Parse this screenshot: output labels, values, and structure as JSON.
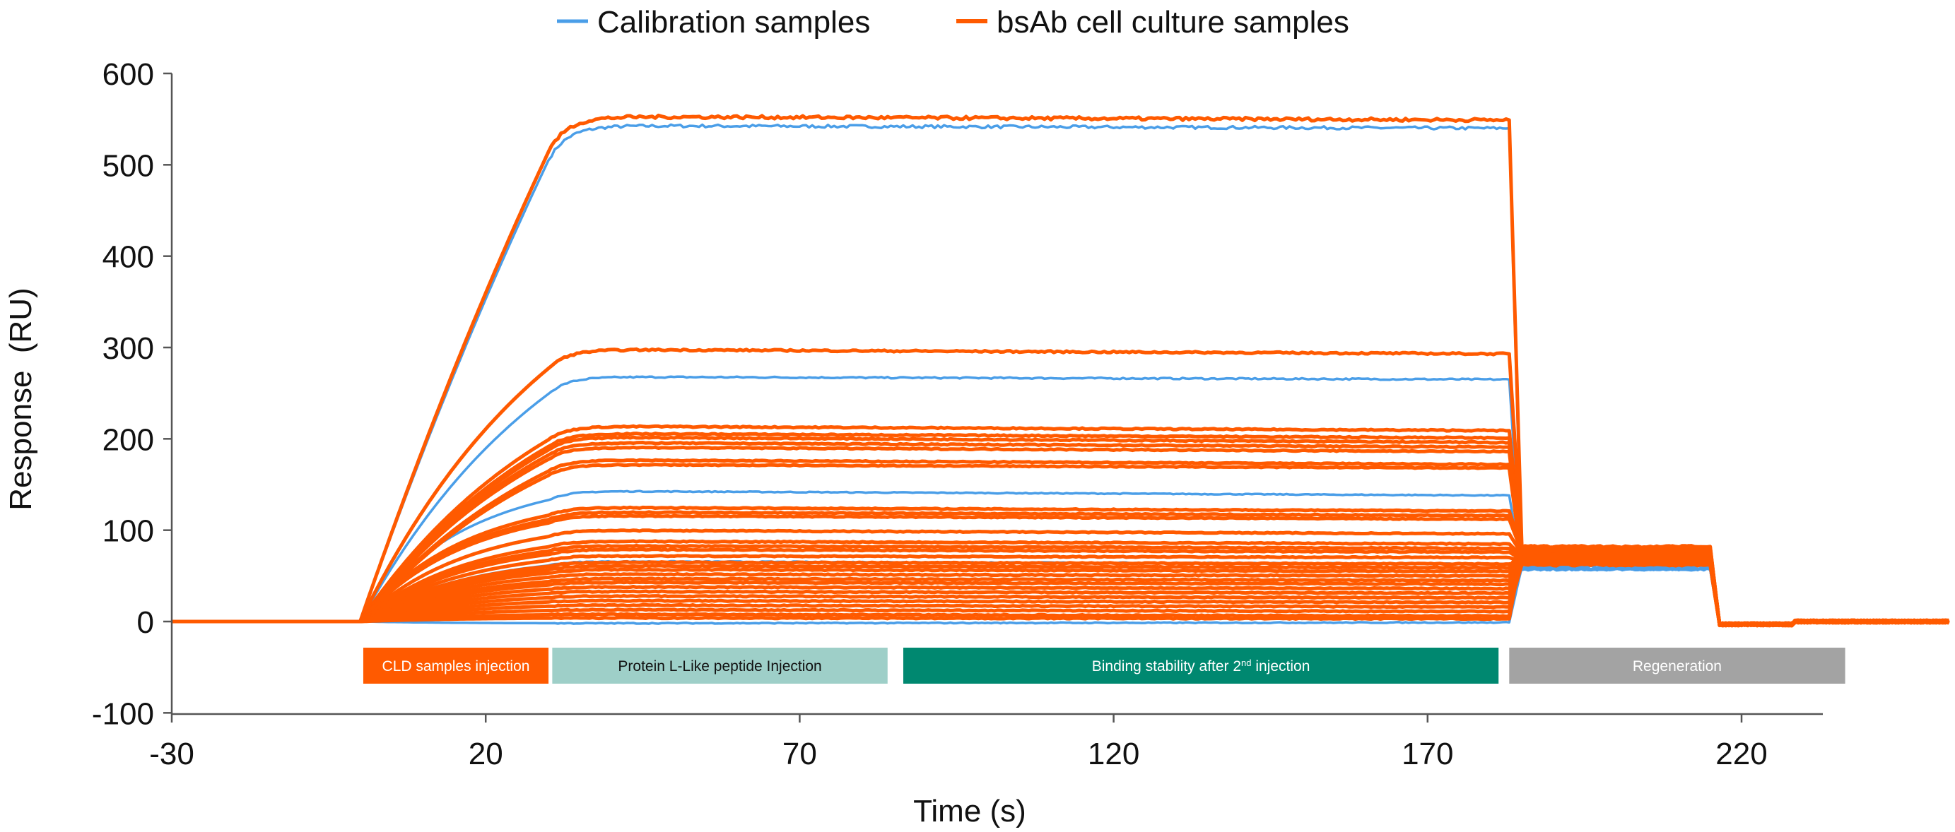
{
  "chart_data": {
    "type": "line",
    "xlabel": "Time (s)",
    "ylabel": "Response  (RU)",
    "xlim": [
      -30,
      253
    ],
    "ylim": [
      -100,
      600
    ],
    "xticks": [
      "-30",
      "20",
      "70",
      "120",
      "170",
      "220"
    ],
    "yticks": [
      "600",
      "500",
      "400",
      "300",
      "200",
      "100",
      "0",
      "-100"
    ],
    "grid": false,
    "legend_position": "top-center",
    "legend": [
      {
        "label": "Calibration samples",
        "color": "#4a9ee8"
      },
      {
        "label": "bsAb cell culture samples",
        "color": "#ff5a00"
      }
    ],
    "events": {
      "injection_start": 0,
      "injection_end": 30,
      "second_injection": 183,
      "regeneration": 215
    },
    "phases": [
      {
        "label": "CLD samples injection",
        "start": 0.5,
        "end": 30,
        "color": "#ff5a00",
        "text_color": "#ffffff"
      },
      {
        "label": "Protein L-Like peptide Injection",
        "start": 30.6,
        "end": 84,
        "color": "#9ecfc8",
        "text_color": "#111111"
      },
      {
        "label": "Binding stability after 2",
        "sup": "nd",
        "label_end": " injection",
        "start": 86.5,
        "end": 181.3,
        "color": "#008870",
        "text_color": "#ffffff"
      },
      {
        "label": "Regeneration",
        "start": 183,
        "end": 236.5,
        "color": "#a3a3a3",
        "text_color": "#ffffff"
      }
    ],
    "series": [
      {
        "name": "Calibration samples",
        "color": "#4a9ee8",
        "plateau": [
          543,
          268,
          143,
          66,
          -2
        ],
        "end_level": [
          540,
          265,
          138,
          63,
          -1
        ],
        "second_injection_level": [
          57,
          57,
          58,
          58,
          60
        ]
      },
      {
        "name": "bsAb cell culture samples",
        "color": "#ff5a00",
        "plateau": [
          553,
          298,
          214,
          206,
          202,
          196,
          191,
          177,
          172,
          125,
          120,
          116,
          100,
          88,
          83,
          79,
          72,
          65,
          61,
          57,
          52,
          47,
          43,
          38,
          33,
          28,
          23,
          18,
          13,
          8,
          4
        ],
        "end_level": [
          549,
          293,
          209,
          201,
          196,
          191,
          186,
          172,
          168,
          121,
          116,
          112,
          96,
          85,
          80,
          76,
          70,
          63,
          59,
          55,
          50,
          45,
          41,
          36,
          31,
          26,
          21,
          16,
          11,
          6,
          3
        ],
        "second_injection_level": [
          82,
          80,
          78,
          76,
          74,
          72,
          70,
          68,
          66,
          80,
          78,
          76,
          74,
          72,
          70,
          68,
          66,
          64,
          80,
          78,
          76,
          74,
          72,
          70,
          68,
          66,
          64,
          62,
          82,
          80,
          78
        ]
      }
    ]
  }
}
